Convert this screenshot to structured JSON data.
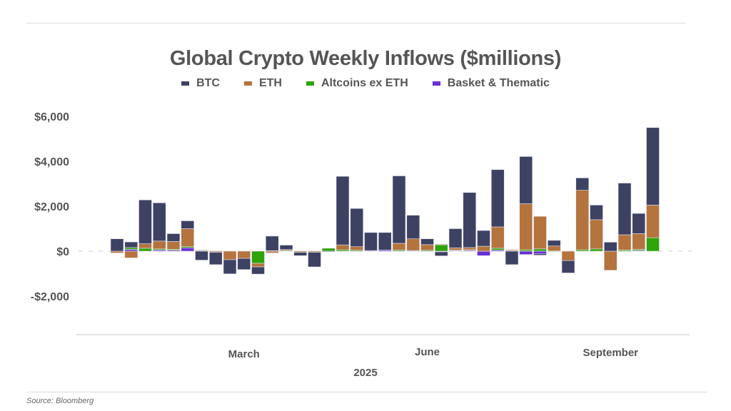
{
  "chart_data": {
    "type": "bar",
    "stacked": true,
    "title": "Global Crypto Weekly Inflows ($millions)",
    "xlabel": "2025",
    "ylabel": "",
    "ylim": [
      -3500,
      6000
    ],
    "yticks": [
      6000,
      4000,
      2000,
      0,
      -2000
    ],
    "ytick_labels": [
      "$6,000",
      "$4,000",
      "$2,000",
      "$0",
      "-$2,000"
    ],
    "xtick_labels": [
      {
        "label": "March",
        "week_index": 9
      },
      {
        "label": "June",
        "week_index": 22
      },
      {
        "label": "September",
        "week_index": 35
      }
    ],
    "legend_position": "top-center",
    "grid": false,
    "weeks": 39,
    "series": [
      {
        "name": "BTC",
        "color": "#3d4263",
        "values": [
          550,
          250,
          1950,
          1700,
          350,
          350,
          -400,
          -550,
          -630,
          -500,
          -320,
          650,
          200,
          -150,
          -650,
          -30,
          3050,
          1700,
          800,
          780,
          3000,
          1050,
          260,
          -180,
          850,
          2450,
          700,
          2550,
          -600,
          2100,
          -60,
          250,
          -550,
          550,
          650,
          400,
          2300,
          900,
          3450
        ]
      },
      {
        "name": "ETH",
        "color": "#b5733d",
        "values": [
          -80,
          -300,
          200,
          350,
          350,
          800,
          30,
          -50,
          -380,
          -320,
          -160,
          -80,
          40,
          -50,
          -50,
          0,
          220,
          160,
          0,
          0,
          300,
          520,
          250,
          30,
          100,
          100,
          220,
          950,
          40,
          2050,
          1450,
          220,
          -420,
          2650,
          1300,
          -850,
          680,
          700,
          1450
        ]
      },
      {
        "name": "Altcoins ex ETH",
        "color": "#2ea30a",
        "values": [
          0,
          80,
          130,
          50,
          40,
          50,
          20,
          10,
          10,
          10,
          -540,
          20,
          30,
          10,
          10,
          130,
          60,
          40,
          0,
          0,
          50,
          0,
          40,
          280,
          20,
          20,
          0,
          80,
          20,
          60,
          100,
          10,
          0,
          60,
          100,
          0,
          50,
          50,
          600
        ]
      },
      {
        "name": "Basket & Thematic",
        "color": "#6a2fd6",
        "values": [
          0,
          80,
          0,
          50,
          40,
          150,
          0,
          0,
          0,
          0,
          0,
          0,
          0,
          0,
          0,
          0,
          0,
          0,
          30,
          50,
          0,
          30,
          0,
          -30,
          30,
          40,
          -200,
          50,
          0,
          -150,
          -120,
          0,
          0,
          0,
          0,
          0,
          0,
          30,
          0
        ]
      }
    ]
  },
  "source": "Source: Bloomberg"
}
